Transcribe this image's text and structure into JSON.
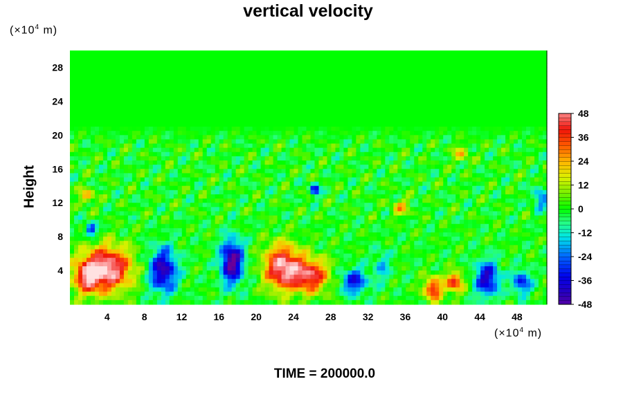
{
  "chart_data": {
    "type": "heatmap",
    "title": "vertical velocity",
    "ylabel": "Height",
    "x_unit_prefix": "(×10",
    "x_unit_exp": "4",
    "x_unit_suffix": " m)",
    "y_unit_prefix": "(×10",
    "y_unit_exp": "4",
    "y_unit_suffix": " m)",
    "xlim": [
      0,
      51.2
    ],
    "ylim": [
      0,
      30
    ],
    "x_ticks": [
      4,
      8,
      12,
      16,
      20,
      24,
      28,
      32,
      36,
      40,
      44,
      48
    ],
    "y_ticks": [
      4,
      8,
      12,
      16,
      20,
      24,
      28
    ],
    "colorbar_ticks": [
      48,
      36,
      24,
      12,
      0,
      -12,
      -24,
      -36,
      -48
    ],
    "colorbar_range": [
      -48,
      48
    ],
    "grid": false,
    "features": [
      {
        "x": 4.0,
        "y": 4.2,
        "value": 55,
        "sx": 2.6,
        "sy": 2.6
      },
      {
        "x": 1.8,
        "y": 3.2,
        "value": 34,
        "sx": 1.4,
        "sy": 2.0
      },
      {
        "x": 10.0,
        "y": 4.0,
        "value": -44,
        "sx": 1.5,
        "sy": 2.6
      },
      {
        "x": 17.4,
        "y": 5.0,
        "value": -52,
        "sx": 1.2,
        "sy": 2.6
      },
      {
        "x": 22.8,
        "y": 4.4,
        "value": 52,
        "sx": 1.9,
        "sy": 2.6
      },
      {
        "x": 25.8,
        "y": 3.4,
        "value": 44,
        "sx": 2.0,
        "sy": 2.0
      },
      {
        "x": 30.5,
        "y": 2.7,
        "value": -34,
        "sx": 1.4,
        "sy": 1.5
      },
      {
        "x": 33.5,
        "y": 4.5,
        "value": -16,
        "sx": 0.9,
        "sy": 2.0
      },
      {
        "x": 39.0,
        "y": 1.8,
        "value": 40,
        "sx": 1.0,
        "sy": 1.4
      },
      {
        "x": 41.3,
        "y": 2.6,
        "value": 40,
        "sx": 0.9,
        "sy": 1.2
      },
      {
        "x": 44.8,
        "y": 3.0,
        "value": -40,
        "sx": 1.3,
        "sy": 2.1
      },
      {
        "x": 48.5,
        "y": 2.6,
        "value": -32,
        "sx": 1.0,
        "sy": 1.4
      },
      {
        "x": 2.3,
        "y": 8.8,
        "value": -36,
        "sx": 0.6,
        "sy": 0.8
      },
      {
        "x": 1.8,
        "y": 12.8,
        "value": 24,
        "sx": 0.8,
        "sy": 0.9
      },
      {
        "x": 26.3,
        "y": 13.5,
        "value": -38,
        "sx": 0.5,
        "sy": 0.7
      },
      {
        "x": 35.5,
        "y": 11.4,
        "value": 20,
        "sx": 1.0,
        "sy": 1.0
      },
      {
        "x": 42.0,
        "y": 17.8,
        "value": 20,
        "sx": 0.8,
        "sy": 1.0
      },
      {
        "x": 50.5,
        "y": 12.5,
        "value": -24,
        "sx": 0.8,
        "sy": 1.2
      }
    ],
    "footer": "TIME = 200000.0"
  }
}
